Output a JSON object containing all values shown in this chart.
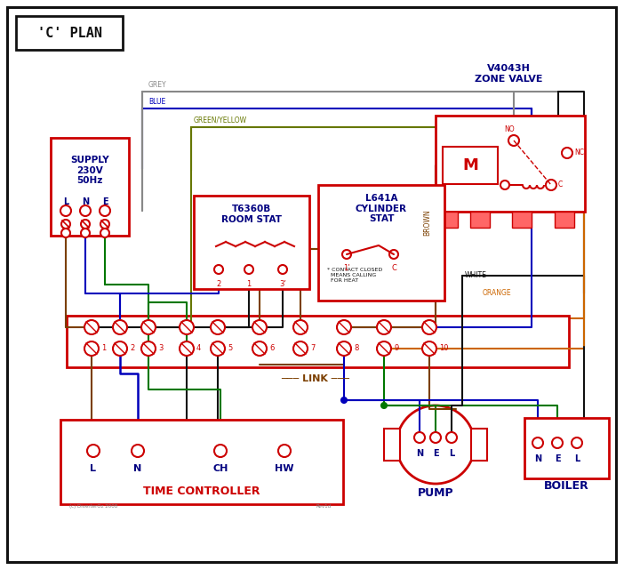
{
  "bg": "#ffffff",
  "red": "#cc0000",
  "blue": "#0000bb",
  "green": "#007700",
  "black": "#111111",
  "brown": "#7B3F00",
  "orange": "#CC6600",
  "grey": "#888888",
  "gy": "#667700",
  "navy": "#000080",
  "lred": "#ff6666",
  "title": "'C' PLAN",
  "supply": "SUPPLY\n230V\n50Hz",
  "zv_title": "V4043H\nZONE VALVE",
  "rs_title": "T6360B\nROOM STAT",
  "cs_title": "L641A\nCYLINDER\nSTAT",
  "tc_title": "TIME CONTROLLER",
  "pump_lbl": "PUMP",
  "boiler_lbl": "BOILER",
  "link_lbl": "LINK",
  "wire_grey": "GREY",
  "wire_blue": "BLUE",
  "wire_gy": "GREEN/YELLOW",
  "wire_brown": "BROWN",
  "wire_white": "WHITE",
  "wire_orange": "ORANGE",
  "terminals": [
    "1",
    "2",
    "3",
    "4",
    "5",
    "6",
    "7",
    "8",
    "9",
    "10"
  ],
  "tc_terms": [
    "L",
    "N",
    "CH",
    "HW"
  ],
  "nel": [
    "N",
    "E",
    "L"
  ],
  "footnote": "(c) DiverterOz 2008",
  "rev": "Rev1d"
}
